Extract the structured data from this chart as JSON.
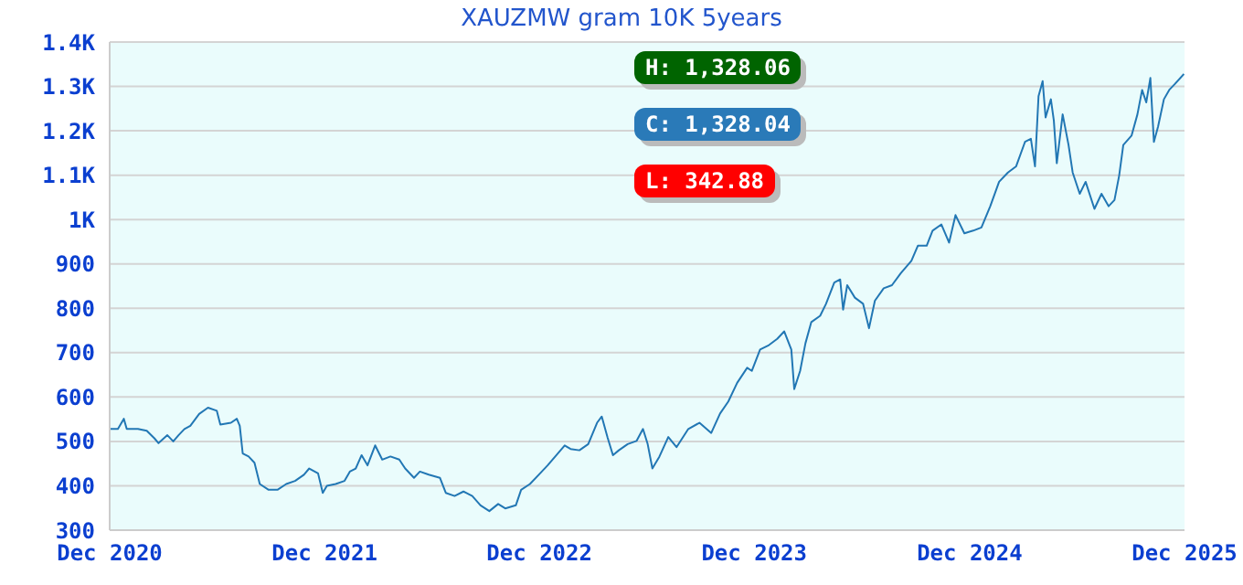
{
  "chart_data": {
    "type": "line",
    "title": "XAUZMW gram 10K 5years",
    "x": [
      "2020-12-01",
      "2020-12-15",
      "2020-12-25",
      "2020-12-30",
      "2021-01-18",
      "2021-02-02",
      "2021-02-15",
      "2021-02-22",
      "2021-03-09",
      "2021-03-19",
      "2021-03-28",
      "2021-04-07",
      "2021-04-17",
      "2021-05-02",
      "2021-05-17",
      "2021-06-01",
      "2021-06-07",
      "2021-06-25",
      "2021-07-05",
      "2021-07-10",
      "2021-07-15",
      "2021-07-25",
      "2021-08-04",
      "2021-08-13",
      "2021-08-28",
      "2021-09-12",
      "2021-09-27",
      "2021-10-12",
      "2021-10-27",
      "2021-11-05",
      "2021-11-20",
      "2021-11-28",
      "2021-12-05",
      "2021-12-20",
      "2022-01-04",
      "2022-01-13",
      "2022-01-23",
      "2022-02-02",
      "2022-02-12",
      "2022-02-25",
      "2022-03-09",
      "2022-03-23",
      "2022-04-07",
      "2022-04-17",
      "2022-05-02",
      "2022-05-12",
      "2022-05-27",
      "2022-06-15",
      "2022-06-25",
      "2022-07-10",
      "2022-07-25",
      "2022-08-09",
      "2022-08-23",
      "2022-09-07",
      "2022-09-22",
      "2022-10-04",
      "2022-10-22",
      "2022-10-31",
      "2022-11-15",
      "2022-11-30",
      "2022-12-15",
      "2022-12-30",
      "2023-01-13",
      "2023-01-23",
      "2023-02-07",
      "2023-02-22",
      "2023-03-09",
      "2023-03-17",
      "2023-03-27",
      "2023-04-05",
      "2023-04-15",
      "2023-04-30",
      "2023-05-15",
      "2023-05-26",
      "2023-06-03",
      "2023-06-11",
      "2023-06-23",
      "2023-07-08",
      "2023-07-22",
      "2023-08-11",
      "2023-08-30",
      "2023-09-19",
      "2023-10-04",
      "2023-10-18",
      "2023-11-02",
      "2023-11-19",
      "2023-11-27",
      "2023-12-11",
      "2023-12-26",
      "2024-01-09",
      "2024-01-21",
      "2024-02-02",
      "2024-02-07",
      "2024-02-17",
      "2024-02-26",
      "2024-03-07",
      "2024-03-22",
      "2024-04-01",
      "2024-04-15",
      "2024-04-25",
      "2024-04-30",
      "2024-05-07",
      "2024-05-20",
      "2024-06-03",
      "2024-06-13",
      "2024-06-23",
      "2024-07-08",
      "2024-07-22",
      "2024-08-06",
      "2024-08-24",
      "2024-09-04",
      "2024-09-19",
      "2024-09-29",
      "2024-10-14",
      "2024-10-27",
      "2024-11-07",
      "2024-11-22",
      "2024-12-07",
      "2024-12-21",
      "2025-01-05",
      "2025-01-20",
      "2025-02-04",
      "2025-02-18",
      "2025-03-05",
      "2025-03-15",
      "2025-03-22",
      "2025-03-28",
      "2025-04-04",
      "2025-04-09",
      "2025-04-18",
      "2025-04-23",
      "2025-04-28",
      "2025-05-08",
      "2025-05-18",
      "2025-05-25",
      "2025-06-06",
      "2025-06-16",
      "2025-07-01",
      "2025-07-13",
      "2025-07-25",
      "2025-08-04",
      "2025-08-12",
      "2025-08-19",
      "2025-09-02",
      "2025-09-12",
      "2025-09-20",
      "2025-09-27",
      "2025-10-04",
      "2025-10-10",
      "2025-10-17",
      "2025-10-27",
      "2025-11-05",
      "2025-11-15",
      "2025-11-30"
    ],
    "series": [
      {
        "color": "#2277b4",
        "values": [
          528,
          528,
          551,
          528,
          528,
          524,
          507,
          496,
          514,
          500,
          514,
          528,
          535,
          562,
          576,
          569,
          538,
          542,
          551,
          535,
          473,
          466,
          452,
          404,
          391,
          391,
          404,
          411,
          425,
          439,
          428,
          384,
          400,
          404,
          411,
          432,
          439,
          469,
          446,
          491,
          459,
          466,
          459,
          439,
          418,
          432,
          425,
          418,
          384,
          377,
          387,
          377,
          356,
          343,
          359,
          349,
          356,
          391,
          404,
          425,
          446,
          469,
          491,
          483,
          480,
          494,
          542,
          556,
          508,
          469,
          480,
          494,
          501,
          528,
          494,
          439,
          466,
          510,
          487,
          528,
          542,
          519,
          563,
          590,
          632,
          666,
          659,
          707,
          717,
          731,
          748,
          707,
          618,
          659,
          721,
          769,
          783,
          810,
          858,
          865,
          797,
          852,
          824,
          810,
          755,
          817,
          845,
          852,
          879,
          907,
          941,
          941,
          975,
          989,
          948,
          1010,
          969,
          975,
          982,
          1030,
          1085,
          1106,
          1120,
          1175,
          1182,
          1120,
          1278,
          1312,
          1230,
          1271,
          1223,
          1127,
          1237,
          1168,
          1106,
          1058,
          1085,
          1024,
          1058,
          1030,
          1044,
          1099,
          1168,
          1189,
          1237,
          1292,
          1264,
          1319,
          1175,
          1209,
          1271,
          1292,
          1306,
          1328
        ]
      }
    ],
    "xlim": [
      "2020-12-01",
      "2025-12-01"
    ],
    "xticks": [
      {
        "value": "2020-12-01",
        "label": "Dec 2020"
      },
      {
        "value": "2021-12-01",
        "label": "Dec 2021"
      },
      {
        "value": "2022-12-01",
        "label": "Dec 2022"
      },
      {
        "value": "2023-12-01",
        "label": "Dec 2023"
      },
      {
        "value": "2024-12-01",
        "label": "Dec 2024"
      },
      {
        "value": "2025-12-01",
        "label": "Dec 2025"
      }
    ],
    "ylim": [
      300,
      1400
    ],
    "yticks": [
      300,
      400,
      500,
      600,
      700,
      800,
      900,
      {
        "value": 1000,
        "label": "1K"
      },
      {
        "value": 1100,
        "label": "1.1K"
      },
      {
        "value": 1200,
        "label": "1.2K"
      },
      {
        "value": 1300,
        "label": "1.3K"
      },
      {
        "value": 1400,
        "label": "1.4K"
      }
    ],
    "grid": "y",
    "legend": false,
    "marker": "none",
    "line_style": "solid",
    "annotations": [
      "H: 1,328.06",
      "C: 1,328.04",
      "L: 342.88"
    ]
  }
}
